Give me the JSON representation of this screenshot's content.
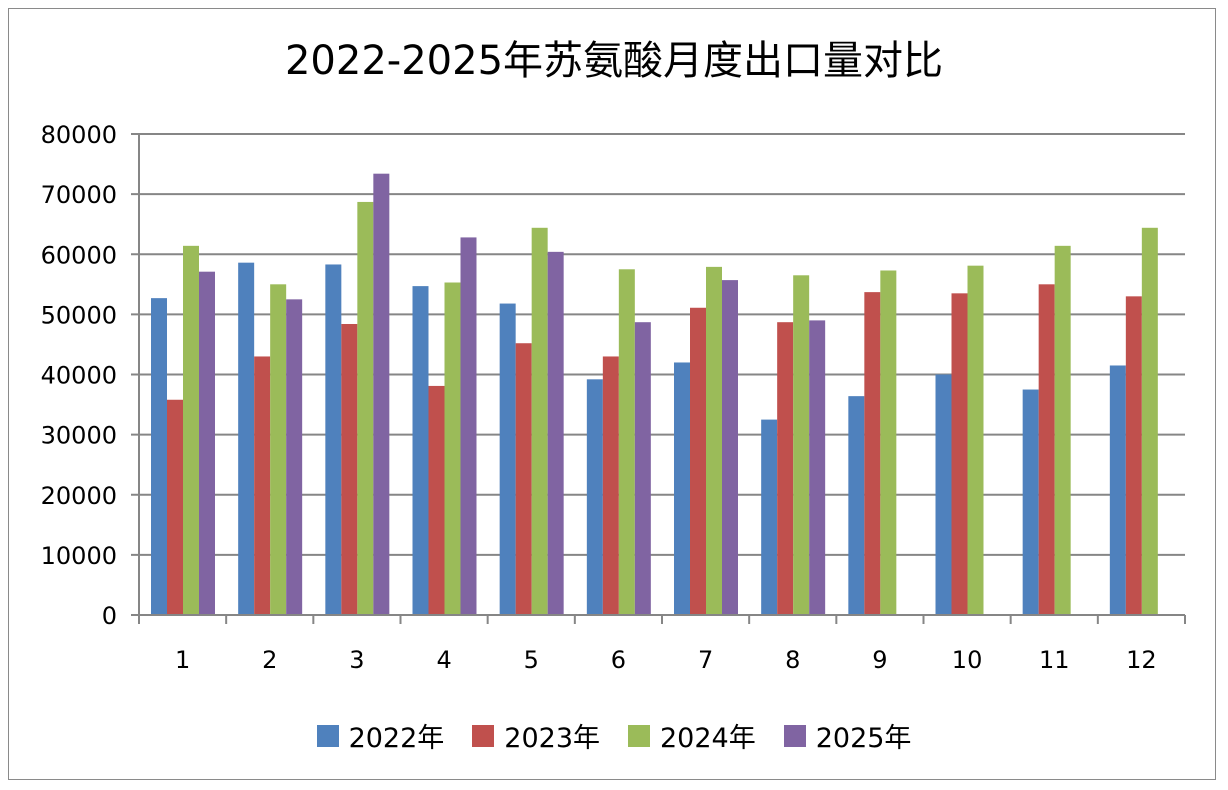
{
  "chart_data": {
    "type": "bar",
    "title": "2022-2025年苏氨酸月度出口量对比",
    "xlabel": "",
    "ylabel": "",
    "ylim": [
      0,
      80000
    ],
    "yticks": [
      0,
      10000,
      20000,
      30000,
      40000,
      50000,
      60000,
      70000,
      80000
    ],
    "grid": true,
    "legend_position": "bottom",
    "categories": [
      "1",
      "2",
      "3",
      "4",
      "5",
      "6",
      "7",
      "8",
      "9",
      "10",
      "11",
      "12"
    ],
    "series": [
      {
        "name": "2022年",
        "color": "#4f81bd",
        "values": [
          52700,
          58600,
          58300,
          54700,
          51800,
          39200,
          42000,
          32500,
          36400,
          40000,
          37500,
          41500
        ]
      },
      {
        "name": "2023年",
        "color": "#c0504d",
        "values": [
          35800,
          43000,
          48400,
          38100,
          45200,
          43000,
          51100,
          48700,
          53700,
          53500,
          55000,
          53000
        ]
      },
      {
        "name": "2024年",
        "color": "#9bbb59",
        "values": [
          61400,
          55000,
          68700,
          55300,
          64400,
          57500,
          57900,
          56500,
          57300,
          58100,
          61400,
          64400
        ]
      },
      {
        "name": "2025年",
        "color": "#8064a2",
        "values": [
          57100,
          52500,
          73400,
          62800,
          60400,
          48700,
          55700,
          49000,
          null,
          null,
          null,
          null
        ]
      }
    ]
  }
}
